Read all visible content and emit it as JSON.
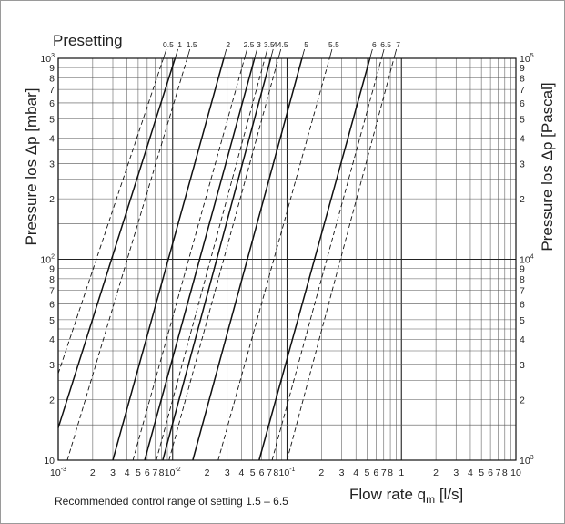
{
  "chart_data": {
    "type": "line",
    "title": "Presetting",
    "xlabel": "Flow rate q",
    "xlabel_sub": "m",
    "xlabel_unit": " [l/s]",
    "ylabel_left": "Pressure los Δp [mbar]",
    "ylabel_right": "Pressure los Δp [Pascal]",
    "note": "Recommended control range of setting 1.5 – 6.5",
    "x_scale": "log",
    "y_scale": "log",
    "xlim": [
      0.001,
      10
    ],
    "ylim": [
      10,
      1000
    ],
    "grid": true,
    "x_tick_labels": [
      {
        "value": 0.001,
        "base": "10",
        "exp": "-3"
      },
      {
        "value": 0.002,
        "base": "2",
        "exp": ""
      },
      {
        "value": 0.003,
        "base": "3",
        "exp": ""
      },
      {
        "value": 0.004,
        "base": "4",
        "exp": ""
      },
      {
        "value": 0.005,
        "base": "5",
        "exp": ""
      },
      {
        "value": 0.006,
        "base": "6",
        "exp": ""
      },
      {
        "value": 0.007,
        "base": "7",
        "exp": ""
      },
      {
        "value": 0.008,
        "base": "8",
        "exp": ""
      },
      {
        "value": 0.01,
        "base": "10",
        "exp": "-2"
      },
      {
        "value": 0.02,
        "base": "2",
        "exp": ""
      },
      {
        "value": 0.03,
        "base": "3",
        "exp": ""
      },
      {
        "value": 0.04,
        "base": "4",
        "exp": ""
      },
      {
        "value": 0.05,
        "base": "5",
        "exp": ""
      },
      {
        "value": 0.06,
        "base": "6",
        "exp": ""
      },
      {
        "value": 0.07,
        "base": "7",
        "exp": ""
      },
      {
        "value": 0.08,
        "base": "8",
        "exp": ""
      },
      {
        "value": 0.1,
        "base": "10",
        "exp": "-1"
      },
      {
        "value": 0.2,
        "base": "2",
        "exp": ""
      },
      {
        "value": 0.3,
        "base": "3",
        "exp": ""
      },
      {
        "value": 0.4,
        "base": "4",
        "exp": ""
      },
      {
        "value": 0.5,
        "base": "5",
        "exp": ""
      },
      {
        "value": 0.6,
        "base": "6",
        "exp": ""
      },
      {
        "value": 0.7,
        "base": "7",
        "exp": ""
      },
      {
        "value": 0.8,
        "base": "8",
        "exp": ""
      },
      {
        "value": 1,
        "base": "1",
        "exp": ""
      },
      {
        "value": 2,
        "base": "2",
        "exp": ""
      },
      {
        "value": 3,
        "base": "3",
        "exp": ""
      },
      {
        "value": 4,
        "base": "4",
        "exp": ""
      },
      {
        "value": 5,
        "base": "5",
        "exp": ""
      },
      {
        "value": 6,
        "base": "6",
        "exp": ""
      },
      {
        "value": 7,
        "base": "7",
        "exp": ""
      },
      {
        "value": 8,
        "base": "8",
        "exp": ""
      },
      {
        "value": 10,
        "base": "10",
        "exp": ""
      }
    ],
    "y_tick_labels_left": [
      {
        "value": 10,
        "base": "10",
        "exp": ""
      },
      {
        "value": 20,
        "base": "2",
        "exp": ""
      },
      {
        "value": 30,
        "base": "3",
        "exp": ""
      },
      {
        "value": 40,
        "base": "4",
        "exp": ""
      },
      {
        "value": 50,
        "base": "5",
        "exp": ""
      },
      {
        "value": 60,
        "base": "6",
        "exp": ""
      },
      {
        "value": 70,
        "base": "7",
        "exp": ""
      },
      {
        "value": 80,
        "base": "8",
        "exp": ""
      },
      {
        "value": 90,
        "base": "9",
        "exp": ""
      },
      {
        "value": 100,
        "base": "10",
        "exp": "2"
      },
      {
        "value": 200,
        "base": "2",
        "exp": ""
      },
      {
        "value": 300,
        "base": "3",
        "exp": ""
      },
      {
        "value": 400,
        "base": "4",
        "exp": ""
      },
      {
        "value": 500,
        "base": "5",
        "exp": ""
      },
      {
        "value": 600,
        "base": "6",
        "exp": ""
      },
      {
        "value": 700,
        "base": "7",
        "exp": ""
      },
      {
        "value": 800,
        "base": "8",
        "exp": ""
      },
      {
        "value": 900,
        "base": "9",
        "exp": ""
      },
      {
        "value": 1000,
        "base": "10",
        "exp": "3"
      }
    ],
    "y_tick_labels_right": [
      {
        "value": 10,
        "base": "10",
        "exp": "3"
      },
      {
        "value": 20,
        "base": "2",
        "exp": ""
      },
      {
        "value": 30,
        "base": "3",
        "exp": ""
      },
      {
        "value": 40,
        "base": "4",
        "exp": ""
      },
      {
        "value": 50,
        "base": "5",
        "exp": ""
      },
      {
        "value": 60,
        "base": "6",
        "exp": ""
      },
      {
        "value": 70,
        "base": "7",
        "exp": ""
      },
      {
        "value": 80,
        "base": "8",
        "exp": ""
      },
      {
        "value": 90,
        "base": "9",
        "exp": ""
      },
      {
        "value": 100,
        "base": "10",
        "exp": "4"
      },
      {
        "value": 200,
        "base": "2",
        "exp": ""
      },
      {
        "value": 300,
        "base": "3",
        "exp": ""
      },
      {
        "value": 400,
        "base": "4",
        "exp": ""
      },
      {
        "value": 500,
        "base": "5",
        "exp": ""
      },
      {
        "value": 600,
        "base": "6",
        "exp": ""
      },
      {
        "value": 700,
        "base": "7",
        "exp": ""
      },
      {
        "value": 800,
        "base": "8",
        "exp": ""
      },
      {
        "value": 900,
        "base": "9",
        "exp": ""
      },
      {
        "value": 1000,
        "base": "10",
        "exp": "5"
      }
    ],
    "series": [
      {
        "label": "0.5",
        "style": "dashed",
        "points": [
          [
            0.001,
            27
          ],
          [
            0.0083,
            1000
          ]
        ]
      },
      {
        "label": "1",
        "style": "solid",
        "points": [
          [
            0.001,
            14.5
          ],
          [
            0.0105,
            1000
          ]
        ]
      },
      {
        "label": "1.5",
        "style": "dashed",
        "points": [
          [
            0.0012,
            10
          ],
          [
            0.0134,
            1000
          ]
        ]
      },
      {
        "label": "2",
        "style": "solid",
        "points": [
          [
            0.003,
            10
          ],
          [
            0.028,
            1000
          ]
        ]
      },
      {
        "label": "2.5",
        "style": "dashed",
        "points": [
          [
            0.0045,
            10
          ],
          [
            0.0425,
            1000
          ]
        ]
      },
      {
        "label": "3",
        "style": "solid",
        "points": [
          [
            0.0057,
            10
          ],
          [
            0.052,
            1000
          ]
        ]
      },
      {
        "label": "3.5",
        "style": "dashed",
        "points": [
          [
            0.0072,
            10
          ],
          [
            0.064,
            1000
          ]
        ]
      },
      {
        "label": "4",
        "style": "solid",
        "points": [
          [
            0.0082,
            10
          ],
          [
            0.072,
            1000
          ]
        ]
      },
      {
        "label": "4.5",
        "style": "dashed",
        "points": [
          [
            0.0093,
            10
          ],
          [
            0.084,
            1000
          ]
        ]
      },
      {
        "label": "5",
        "style": "solid",
        "points": [
          [
            0.015,
            10
          ],
          [
            0.135,
            1000
          ]
        ]
      },
      {
        "label": "5.5",
        "style": "dashed",
        "points": [
          [
            0.025,
            10
          ],
          [
            0.235,
            1000
          ]
        ]
      },
      {
        "label": "6",
        "style": "solid",
        "points": [
          [
            0.057,
            10
          ],
          [
            0.53,
            1000
          ]
        ]
      },
      {
        "label": "6.5",
        "style": "dashed",
        "points": [
          [
            0.074,
            10
          ],
          [
            0.67,
            1000
          ]
        ]
      },
      {
        "label": "7",
        "style": "dashed",
        "points": [
          [
            0.1,
            10
          ],
          [
            0.86,
            1000
          ]
        ]
      }
    ]
  }
}
